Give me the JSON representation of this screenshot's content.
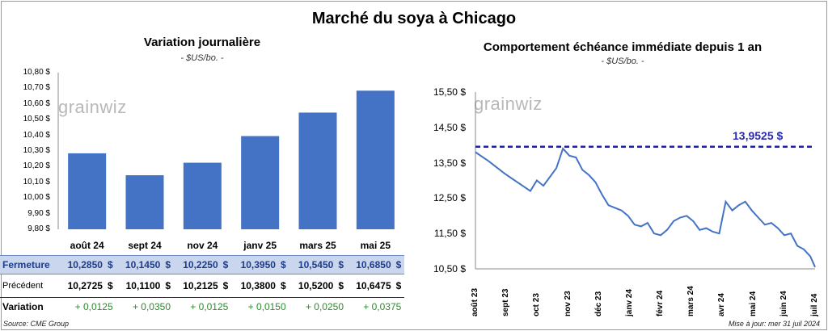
{
  "title": "Marché du soya à Chicago",
  "left": {
    "title": "Variation journalière",
    "unit": "- $US/bo. -",
    "watermark": "grainwiz",
    "yticks": [
      "10,80 $",
      "10,70 $",
      "10,60 $",
      "10,50 $",
      "10,40 $",
      "10,30 $",
      "10,20 $",
      "10,10 $",
      "10,00 $",
      "9,90 $",
      "9,80 $"
    ],
    "table": {
      "row_labels": [
        "Fermeture",
        "Précédent",
        "Variation"
      ],
      "fermeture": [
        "10,2850",
        "10,1450",
        "10,2250",
        "10,3950",
        "10,5450",
        "10,6850"
      ],
      "precedent": [
        "10,2725",
        "10,1100",
        "10,2125",
        "10,3800",
        "10,5200",
        "10,6475"
      ],
      "variation": [
        "+ 0,0125",
        "+ 0,0350",
        "+ 0,0125",
        "+ 0,0150",
        "+ 0,0250",
        "+ 0,0375"
      ],
      "dollar": "$"
    }
  },
  "right": {
    "title": "Comportement échéance immédiate depuis 1 an",
    "unit": "- $US/bo. -",
    "watermark": "grainwiz",
    "yticks": [
      "15,50 $",
      "14,50 $",
      "13,50 $",
      "12,50 $",
      "11,50 $",
      "10,50 $"
    ],
    "max_label": "13,9525 $",
    "xticks": [
      "août 23",
      "sept 23",
      "oct 23",
      "nov 23",
      "déc 23",
      "janv 24",
      "févr 24",
      "mars 24",
      "avr 24",
      "mai 24",
      "juin 24",
      "juil 24"
    ]
  },
  "footer": {
    "source": "Source: CME Group",
    "updated": "Mise à jour: mer 31 juil 2024"
  },
  "chart_data": [
    {
      "type": "bar",
      "title": "Variation journalière",
      "categories": [
        "août 24",
        "sept 24",
        "nov 24",
        "janv 25",
        "mars 25",
        "mai 25"
      ],
      "values": [
        10.285,
        10.145,
        10.225,
        10.395,
        10.545,
        10.685
      ],
      "ylim": [
        9.8,
        10.8
      ],
      "color": "#4472c4",
      "grid": false
    },
    {
      "type": "line",
      "title": "Comportement échéance immédiate depuis 1 an",
      "x": [
        "2023-08-01",
        "2023-08-15",
        "2023-09-01",
        "2023-09-15",
        "2023-09-29",
        "2023-10-06",
        "2023-10-13",
        "2023-10-20",
        "2023-10-27",
        "2023-11-03",
        "2023-11-10",
        "2023-11-17",
        "2023-11-24",
        "2023-12-01",
        "2023-12-08",
        "2023-12-15",
        "2023-12-22",
        "2024-01-05",
        "2024-01-12",
        "2024-01-19",
        "2024-01-26",
        "2024-02-02",
        "2024-02-09",
        "2024-02-16",
        "2024-02-23",
        "2024-03-01",
        "2024-03-08",
        "2024-03-15",
        "2024-03-22",
        "2024-03-29",
        "2024-04-05",
        "2024-04-12",
        "2024-04-19",
        "2024-04-26",
        "2024-05-03",
        "2024-05-10",
        "2024-05-17",
        "2024-05-24",
        "2024-05-31",
        "2024-06-07",
        "2024-06-14",
        "2024-06-21",
        "2024-06-28",
        "2024-07-05",
        "2024-07-12",
        "2024-07-19",
        "2024-07-26",
        "2024-07-31"
      ],
      "values": [
        13.8,
        13.55,
        13.2,
        12.95,
        12.7,
        13.0,
        12.85,
        13.1,
        13.35,
        13.9,
        13.7,
        13.65,
        13.3,
        13.15,
        12.95,
        12.6,
        12.3,
        12.15,
        12.0,
        11.75,
        11.7,
        11.8,
        11.5,
        11.45,
        11.6,
        11.85,
        11.95,
        12.0,
        11.85,
        11.6,
        11.65,
        11.55,
        11.5,
        12.4,
        12.15,
        12.3,
        12.4,
        12.15,
        11.95,
        11.75,
        11.8,
        11.65,
        11.45,
        11.5,
        11.15,
        11.05,
        10.85,
        10.55
      ],
      "ylim": [
        10.5,
        15.5
      ],
      "reference_line": 13.9525,
      "color": "#4472c4",
      "reference_color": "#1f1fa8",
      "grid": false
    }
  ]
}
